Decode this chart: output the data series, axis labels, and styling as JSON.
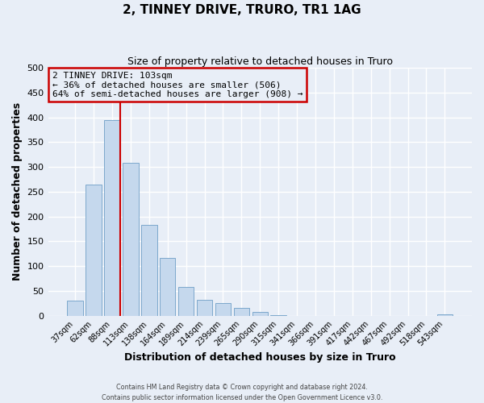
{
  "title": "2, TINNEY DRIVE, TRURO, TR1 1AG",
  "subtitle": "Size of property relative to detached houses in Truro",
  "xlabel": "Distribution of detached houses by size in Truro",
  "ylabel": "Number of detached properties",
  "bar_labels": [
    "37sqm",
    "62sqm",
    "88sqm",
    "113sqm",
    "138sqm",
    "164sqm",
    "189sqm",
    "214sqm",
    "239sqm",
    "265sqm",
    "290sqm",
    "315sqm",
    "341sqm",
    "366sqm",
    "391sqm",
    "417sqm",
    "442sqm",
    "467sqm",
    "492sqm",
    "518sqm",
    "543sqm"
  ],
  "bar_values": [
    30,
    265,
    395,
    308,
    183,
    117,
    58,
    32,
    26,
    15,
    7,
    1,
    0,
    0,
    0,
    0,
    0,
    0,
    0,
    0,
    2
  ],
  "bar_color": "#c5d8ed",
  "bar_edge_color": "#7da8cc",
  "background_color": "#e8eef7",
  "grid_color": "#ffffff",
  "ylim": [
    0,
    500
  ],
  "yticks": [
    0,
    50,
    100,
    150,
    200,
    250,
    300,
    350,
    400,
    450,
    500
  ],
  "annotation_line1": "2 TINNEY DRIVE: 103sqm",
  "annotation_line2": "← 36% of detached houses are smaller (506)",
  "annotation_line3": "64% of semi-detached houses are larger (908) →",
  "annotation_box_color": "#cc0000",
  "red_line_x": 2.42,
  "footer_line1": "Contains HM Land Registry data © Crown copyright and database right 2024.",
  "footer_line2": "Contains public sector information licensed under the Open Government Licence v3.0."
}
